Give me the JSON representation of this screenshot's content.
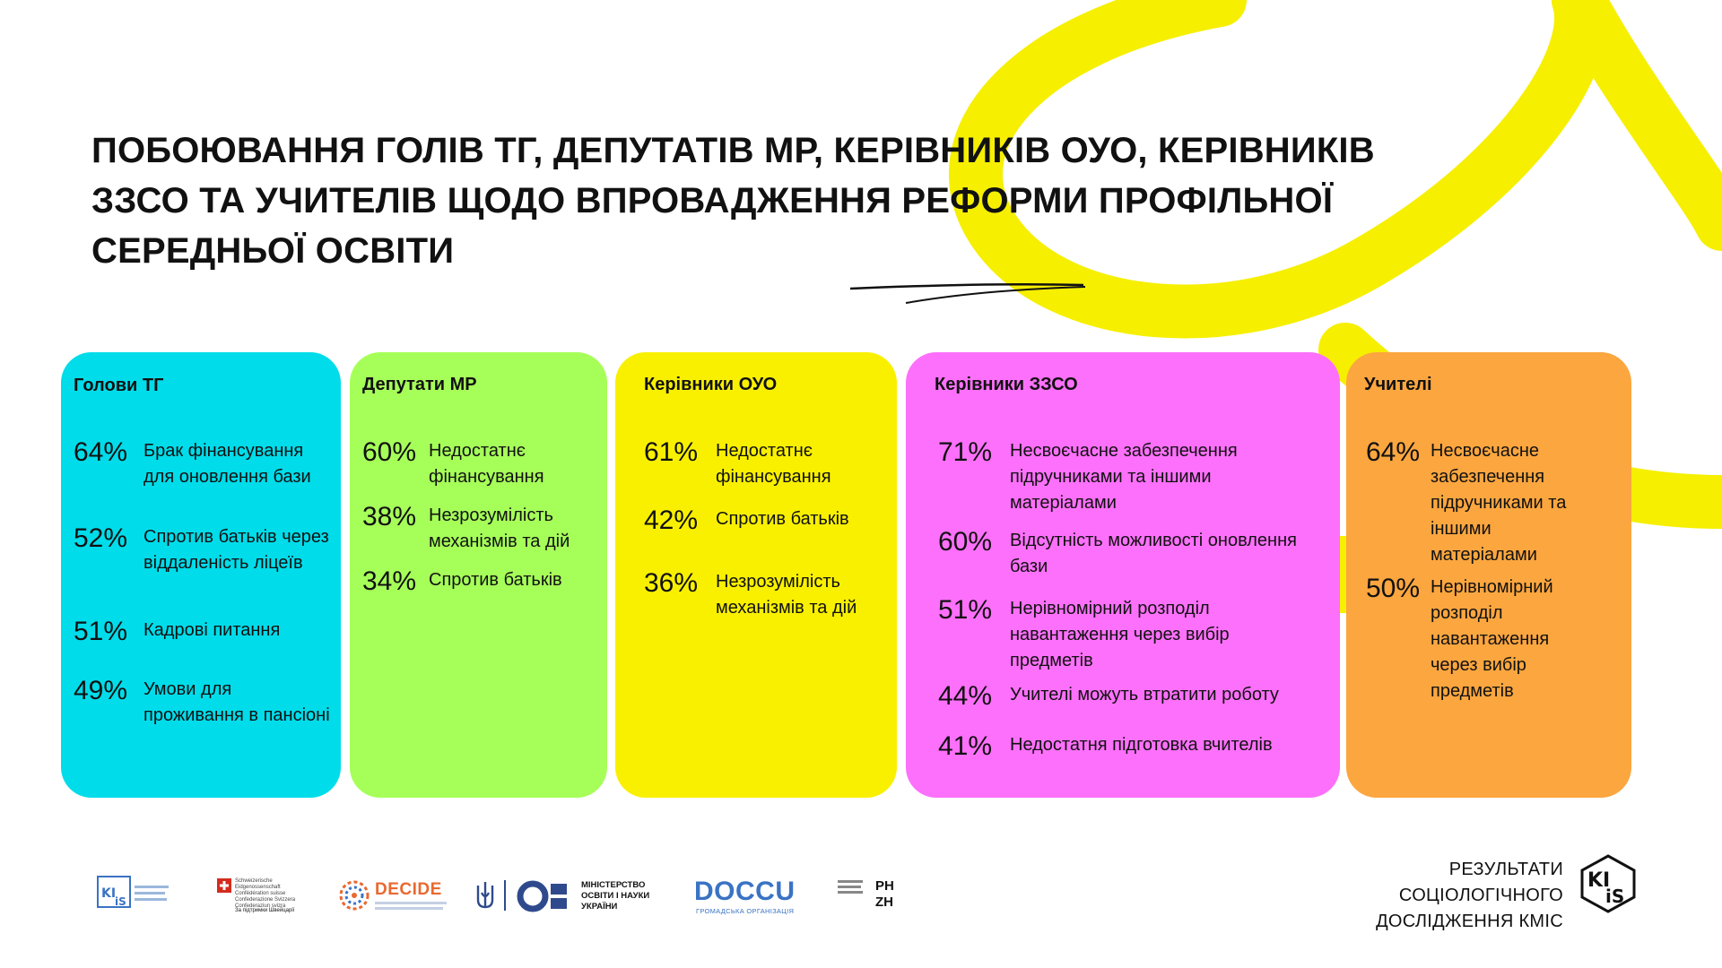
{
  "title": "ПОБОЮВАННЯ ГОЛІВ ТГ, ДЕПУТАТІВ МР, КЕРІВНИКІВ ОУО, КЕРІВНИКІВ ЗЗСО ТА УЧИТЕЛІВ ЩОДО ВПРОВАДЖЕННЯ РЕФОРМИ ПРОФІЛЬНОЇ СЕРЕДНЬОЇ ОСВІТИ",
  "colors": {
    "cyan": "#00dcea",
    "green": "#a6ff59",
    "yellow": "#f9f000",
    "magenta": "#fd70fb",
    "orange": "#fca63f",
    "decor_yellow": "#f6ef00"
  },
  "groups": [
    {
      "name": "Голови ТГ",
      "items": [
        {
          "pct": "64%",
          "text": "Брак фінансування для оновлення бази"
        },
        {
          "pct": "52%",
          "text": "Спротив батьків через віддаленість ліцеїв"
        },
        {
          "pct": "51%",
          "text": "Кадрові питання"
        },
        {
          "pct": "49%",
          "text": "Умови для проживання в пансіоні"
        }
      ]
    },
    {
      "name": "Депутати МР",
      "items": [
        {
          "pct": "60%",
          "text": "Недостатнє фінансування"
        },
        {
          "pct": "38%",
          "text": "Незрозумілість механізмів та дій"
        },
        {
          "pct": "34%",
          "text": "Спротив батьків"
        }
      ]
    },
    {
      "name": "Керівники ОУО",
      "items": [
        {
          "pct": "61%",
          "text": "Недостатнє фінансування"
        },
        {
          "pct": "42%",
          "text": "Спротив батьків"
        },
        {
          "pct": "36%",
          "text": "Незрозумілість механізмів та дій"
        }
      ]
    },
    {
      "name": "Керівники ЗЗСО",
      "items": [
        {
          "pct": "71%",
          "text": "Несвоєчасне забезпечення підручниками та іншими матеріалами"
        },
        {
          "pct": "60%",
          "text": "Відсутність можливості оновлення бази"
        },
        {
          "pct": "51%",
          "text": "Нерівномірний розподіл навантаження через вибір предметів"
        },
        {
          "pct": "44%",
          "text": "Учителі можуть втратити роботу"
        },
        {
          "pct": "41%",
          "text": "Недостатня підготовка вчителів"
        }
      ]
    },
    {
      "name": "Учителі",
      "items": [
        {
          "pct": "64%",
          "text": "Несвоєчасне забезпечення підручниками та іншими матеріалами"
        },
        {
          "pct": "50%",
          "text": "Нерівномірний розподіл навантаження через вибір предметів"
        }
      ]
    }
  ],
  "footer": {
    "result_lines": [
      "РЕЗУЛЬТАТИ",
      "СОЦІОЛОГІЧНОГО",
      "ДОСЛІДЖЕННЯ КМІС"
    ],
    "kmis_badge": "KI IS",
    "logos": {
      "decide": "DECIDE",
      "ministry": "МІНІСТЕРСТВО ОСВІТИ І НАУКИ УКРАЇНИ",
      "doccu": "DOCCU",
      "doccu_sub": "ГРОМАДСЬКА ОРГАНІЗАЦІЯ",
      "phzh": "PH ZH",
      "swiss_support": "За підтримки Швейцарії",
      "swiss_text": "Schweizerische Eidgenossenschaft Confédération suisse Confederazione Svizzera Confederaziun svizra"
    }
  }
}
